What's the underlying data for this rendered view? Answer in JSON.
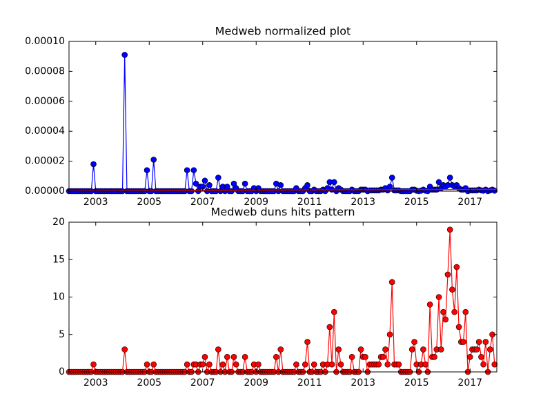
{
  "chart_data": [
    {
      "type": "line",
      "title": "Medweb normalized plot",
      "xlim": [
        2002,
        2018
      ],
      "xticks": [
        2003,
        2005,
        2007,
        2009,
        2011,
        2013,
        2015,
        2017
      ],
      "ylim": [
        0,
        0.0001
      ],
      "yticks": [
        {
          "value": 0,
          "label": "0.00000"
        },
        {
          "value": 2e-05,
          "label": "0.00002"
        },
        {
          "value": 4e-05,
          "label": "0.00004"
        },
        {
          "value": 6e-05,
          "label": "0.00006"
        },
        {
          "value": 8e-05,
          "label": "0.00008"
        },
        {
          "value": 0.0001,
          "label": "0.00010"
        }
      ],
      "x": [
        2002,
        2002.083,
        2002.167,
        2002.25,
        2002.333,
        2002.417,
        2002.5,
        2002.583,
        2002.667,
        2002.75,
        2002.833,
        2002.917,
        2003,
        2003.083,
        2003.167,
        2003.25,
        2003.333,
        2003.417,
        2003.5,
        2003.583,
        2003.667,
        2003.75,
        2003.833,
        2003.917,
        2004,
        2004.083,
        2004.167,
        2004.25,
        2004.333,
        2004.417,
        2004.5,
        2004.583,
        2004.667,
        2004.75,
        2004.833,
        2004.917,
        2005,
        2005.083,
        2005.167,
        2005.25,
        2005.333,
        2005.417,
        2005.5,
        2005.583,
        2005.667,
        2005.75,
        2005.833,
        2005.917,
        2006,
        2006.083,
        2006.167,
        2006.25,
        2006.333,
        2006.417,
        2006.5,
        2006.583,
        2006.667,
        2006.75,
        2006.833,
        2006.917,
        2007,
        2007.083,
        2007.167,
        2007.25,
        2007.333,
        2007.417,
        2007.5,
        2007.583,
        2007.667,
        2007.75,
        2007.833,
        2007.917,
        2008,
        2008.083,
        2008.167,
        2008.25,
        2008.333,
        2008.417,
        2008.5,
        2008.583,
        2008.667,
        2008.75,
        2008.833,
        2008.917,
        2009,
        2009.083,
        2009.167,
        2009.25,
        2009.333,
        2009.417,
        2009.5,
        2009.583,
        2009.667,
        2009.75,
        2009.833,
        2009.917,
        2010,
        2010.083,
        2010.167,
        2010.25,
        2010.333,
        2010.417,
        2010.5,
        2010.583,
        2010.667,
        2010.75,
        2010.833,
        2010.917,
        2011,
        2011.083,
        2011.167,
        2011.25,
        2011.333,
        2011.417,
        2011.5,
        2011.583,
        2011.667,
        2011.75,
        2011.833,
        2011.917,
        2012,
        2012.083,
        2012.167,
        2012.25,
        2012.333,
        2012.417,
        2012.5,
        2012.583,
        2012.667,
        2012.75,
        2012.833,
        2012.917,
        2013,
        2013.083,
        2013.167,
        2013.25,
        2013.333,
        2013.417,
        2013.5,
        2013.583,
        2013.667,
        2013.75,
        2013.833,
        2013.917,
        2014,
        2014.083,
        2014.167,
        2014.25,
        2014.333,
        2014.417,
        2014.5,
        2014.583,
        2014.667,
        2014.75,
        2014.833,
        2014.917,
        2015,
        2015.083,
        2015.167,
        2015.25,
        2015.333,
        2015.417,
        2015.5,
        2015.583,
        2015.667,
        2015.75,
        2015.833,
        2015.917,
        2016,
        2016.083,
        2016.167,
        2016.25,
        2016.333,
        2016.417,
        2016.5,
        2016.583,
        2016.667,
        2016.75,
        2016.833,
        2016.917,
        2017,
        2017.083,
        2017.167,
        2017.25,
        2017.333,
        2017.417,
        2017.5,
        2017.583,
        2017.667,
        2017.75,
        2017.833,
        2017.917
      ],
      "series": [
        {
          "color": "#0000ff",
          "marker": true,
          "values": [
            0,
            0,
            0,
            0,
            0,
            0,
            0,
            0,
            0,
            0,
            0,
            1.8e-05,
            0,
            0,
            0,
            0,
            0,
            0,
            0,
            0,
            0,
            0,
            0,
            0,
            0,
            9.1e-05,
            0,
            0,
            0,
            0,
            0,
            0,
            0,
            0,
            0,
            1.4e-05,
            0,
            0,
            2.1e-05,
            0,
            0,
            0,
            0,
            0,
            0,
            0,
            0,
            0,
            0,
            0,
            0,
            0,
            0,
            1.4e-05,
            0,
            0,
            1.4e-05,
            5e-06,
            0,
            3e-06,
            3e-06,
            7e-06,
            0,
            4e-06,
            0,
            0,
            0,
            9e-06,
            0,
            3e-06,
            0,
            3e-06,
            0,
            0,
            5e-06,
            2e-06,
            0,
            0,
            0,
            5e-06,
            0,
            0,
            0,
            2e-06,
            0,
            2e-06,
            0,
            0,
            0,
            0,
            0,
            0,
            0,
            5e-06,
            0,
            4e-06,
            0,
            0,
            0,
            0,
            0,
            0,
            2e-06,
            0,
            0,
            0,
            2e-06,
            4e-06,
            0,
            0,
            1e-06,
            0,
            0,
            0,
            1e-06,
            0,
            2e-06,
            6e-06,
            1e-06,
            6e-06,
            0,
            2e-06,
            1e-06,
            0,
            0,
            0,
            0,
            1e-06,
            0,
            0,
            0,
            1e-06,
            1e-06,
            1e-06,
            0,
            5e-07,
            5e-07,
            5e-07,
            5e-07,
            5e-07,
            1e-06,
            1e-06,
            2e-06,
            5e-07,
            3e-06,
            9e-06,
            5e-07,
            5e-07,
            5e-07,
            0,
            0,
            0,
            0,
            0,
            1e-06,
            1e-06,
            3e-07,
            0,
            3e-07,
            1e-06,
            3e-07,
            0,
            3e-06,
            1e-06,
            1e-06,
            1e-06,
            6e-06,
            2e-06,
            4e-06,
            3e-06,
            4e-06,
            9e-06,
            4e-06,
            3e-06,
            4e-06,
            2e-06,
            1e-06,
            1e-06,
            2e-06,
            0,
            5e-07,
            5e-07,
            5e-07,
            5e-07,
            1e-06,
            5e-07,
            3e-07,
            1e-06,
            0,
            5e-07,
            1e-06,
            3e-07
          ]
        },
        {
          "color": "#ff0000",
          "marker": false,
          "x": [
            2002,
            2018
          ],
          "values": [
            2e-07,
            1.2e-06
          ]
        }
      ]
    },
    {
      "type": "line",
      "title": "Medweb duns hits pattern",
      "xlim": [
        2002,
        2018
      ],
      "xticks": [
        2003,
        2005,
        2007,
        2009,
        2011,
        2013,
        2015,
        2017
      ],
      "ylim": [
        0,
        20
      ],
      "yticks": [
        0,
        5,
        10,
        15,
        20
      ],
      "x": [
        2002,
        2002.083,
        2002.167,
        2002.25,
        2002.333,
        2002.417,
        2002.5,
        2002.583,
        2002.667,
        2002.75,
        2002.833,
        2002.917,
        2003,
        2003.083,
        2003.167,
        2003.25,
        2003.333,
        2003.417,
        2003.5,
        2003.583,
        2003.667,
        2003.75,
        2003.833,
        2003.917,
        2004,
        2004.083,
        2004.167,
        2004.25,
        2004.333,
        2004.417,
        2004.5,
        2004.583,
        2004.667,
        2004.75,
        2004.833,
        2004.917,
        2005,
        2005.083,
        2005.167,
        2005.25,
        2005.333,
        2005.417,
        2005.5,
        2005.583,
        2005.667,
        2005.75,
        2005.833,
        2005.917,
        2006,
        2006.083,
        2006.167,
        2006.25,
        2006.333,
        2006.417,
        2006.5,
        2006.583,
        2006.667,
        2006.75,
        2006.833,
        2006.917,
        2007,
        2007.083,
        2007.167,
        2007.25,
        2007.333,
        2007.417,
        2007.5,
        2007.583,
        2007.667,
        2007.75,
        2007.833,
        2007.917,
        2008,
        2008.083,
        2008.167,
        2008.25,
        2008.333,
        2008.417,
        2008.5,
        2008.583,
        2008.667,
        2008.75,
        2008.833,
        2008.917,
        2009,
        2009.083,
        2009.167,
        2009.25,
        2009.333,
        2009.417,
        2009.5,
        2009.583,
        2009.667,
        2009.75,
        2009.833,
        2009.917,
        2010,
        2010.083,
        2010.167,
        2010.25,
        2010.333,
        2010.417,
        2010.5,
        2010.583,
        2010.667,
        2010.75,
        2010.833,
        2010.917,
        2011,
        2011.083,
        2011.167,
        2011.25,
        2011.333,
        2011.417,
        2011.5,
        2011.583,
        2011.667,
        2011.75,
        2011.833,
        2011.917,
        2012,
        2012.083,
        2012.167,
        2012.25,
        2012.333,
        2012.417,
        2012.5,
        2012.583,
        2012.667,
        2012.75,
        2012.833,
        2012.917,
        2013,
        2013.083,
        2013.167,
        2013.25,
        2013.333,
        2013.417,
        2013.5,
        2013.583,
        2013.667,
        2013.75,
        2013.833,
        2013.917,
        2014,
        2014.083,
        2014.167,
        2014.25,
        2014.333,
        2014.417,
        2014.5,
        2014.583,
        2014.667,
        2014.75,
        2014.833,
        2014.917,
        2015,
        2015.083,
        2015.167,
        2015.25,
        2015.333,
        2015.417,
        2015.5,
        2015.583,
        2015.667,
        2015.75,
        2015.833,
        2015.917,
        2016,
        2016.083,
        2016.167,
        2016.25,
        2016.333,
        2016.417,
        2016.5,
        2016.583,
        2016.667,
        2016.75,
        2016.833,
        2016.917,
        2017,
        2017.083,
        2017.167,
        2017.25,
        2017.333,
        2017.417,
        2017.5,
        2017.583,
        2017.667,
        2017.75,
        2017.833,
        2017.917
      ],
      "series": [
        {
          "color": "#ff0000",
          "marker": true,
          "values": [
            0,
            0,
            0,
            0,
            0,
            0,
            0,
            0,
            0,
            0,
            0,
            1,
            0,
            0,
            0,
            0,
            0,
            0,
            0,
            0,
            0,
            0,
            0,
            0,
            0,
            3,
            0,
            0,
            0,
            0,
            0,
            0,
            0,
            0,
            0,
            1,
            0,
            0,
            1,
            0,
            0,
            0,
            0,
            0,
            0,
            0,
            0,
            0,
            0,
            0,
            0,
            0,
            0,
            1,
            0,
            0,
            1,
            1,
            0,
            1,
            1,
            2,
            0,
            1,
            0,
            0,
            0,
            3,
            0,
            1,
            0,
            2,
            0,
            0,
            2,
            1,
            0,
            0,
            0,
            2,
            0,
            0,
            0,
            1,
            0,
            1,
            0,
            0,
            0,
            0,
            0,
            0,
            0,
            2,
            0,
            3,
            0,
            0,
            0,
            0,
            0,
            0,
            1,
            0,
            0,
            0,
            1,
            4,
            0,
            0,
            1,
            0,
            0,
            0,
            1,
            0,
            1,
            6,
            1,
            8,
            0,
            3,
            1,
            0,
            0,
            0,
            0,
            2,
            0,
            0,
            0,
            3,
            2,
            2,
            0,
            1,
            1,
            1,
            1,
            1,
            2,
            2,
            3,
            1,
            5,
            12,
            1,
            1,
            1,
            0,
            0,
            0,
            0,
            0,
            3,
            4,
            1,
            0,
            1,
            3,
            1,
            0,
            9,
            2,
            2,
            3,
            10,
            3,
            8,
            7,
            13,
            19,
            11,
            8,
            14,
            6,
            4,
            4,
            8,
            0,
            2,
            3,
            3,
            3,
            4,
            2,
            1,
            4,
            0,
            3,
            5,
            1
          ]
        }
      ]
    }
  ]
}
